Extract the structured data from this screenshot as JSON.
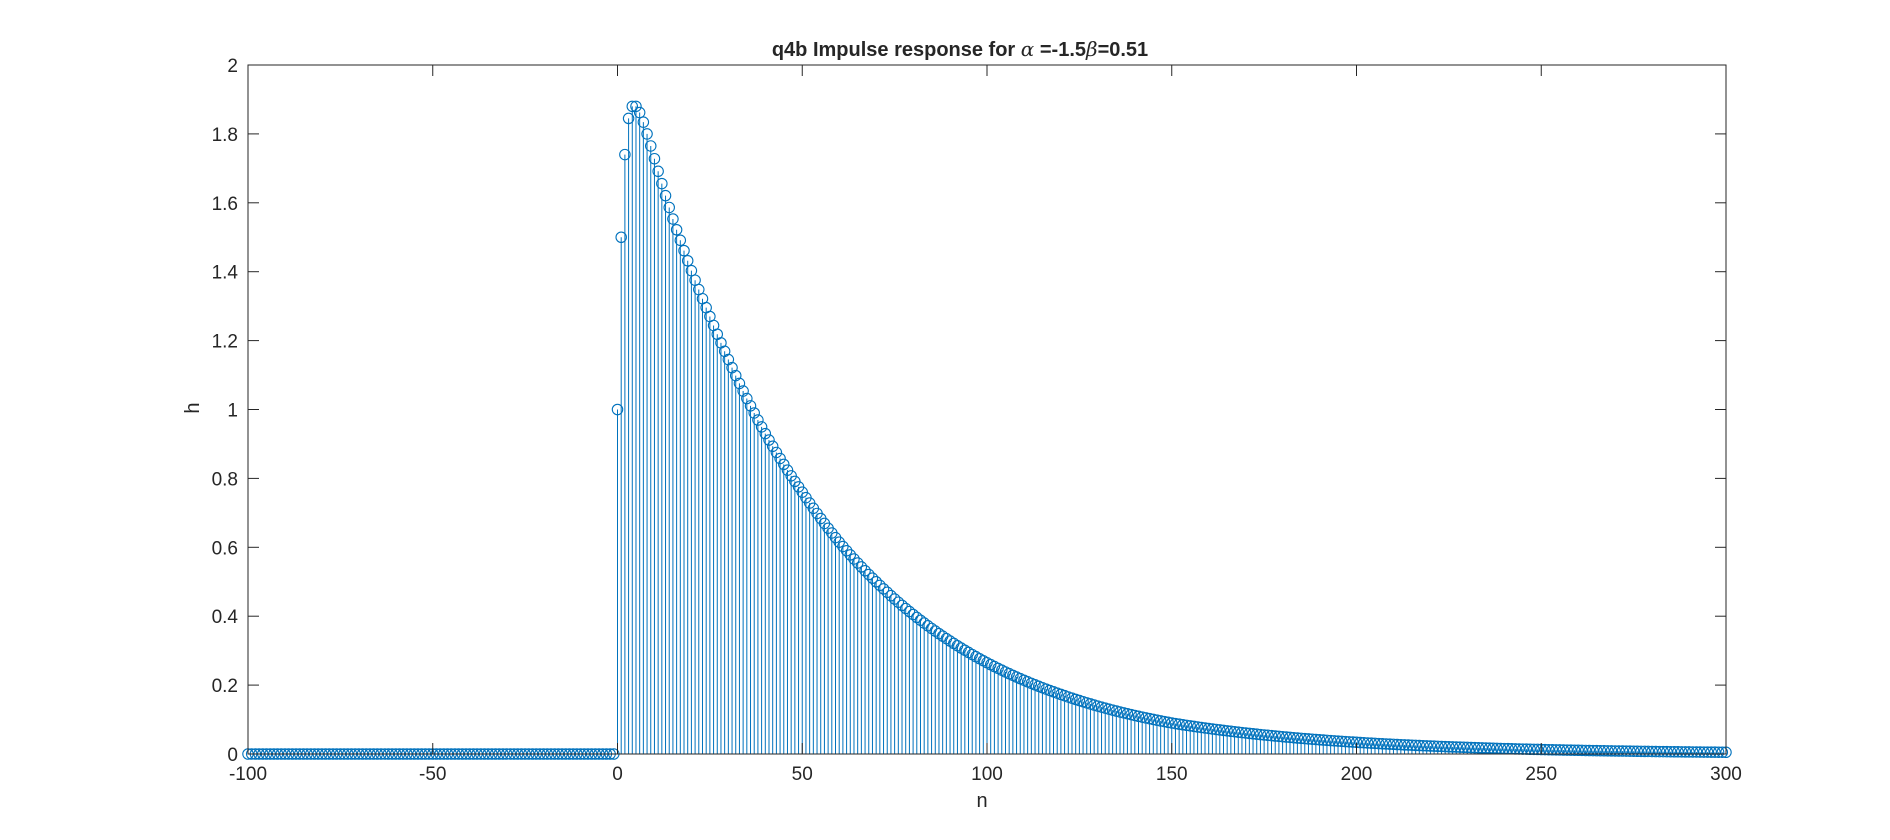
{
  "chart_data": {
    "type": "stem",
    "title": {
      "prefix": "q4b Impulse response for ",
      "alpha_symbol": "α",
      "middle": " =-1.5",
      "beta_symbol": "β",
      "suffix": "=0.51"
    },
    "xlabel": "n",
    "ylabel": "h",
    "xlim": [
      -100,
      300
    ],
    "ylim": [
      0,
      2
    ],
    "xticks": [
      -100,
      -50,
      0,
      50,
      100,
      150,
      200,
      250,
      300
    ],
    "xtick_labels": [
      "-100",
      "-50",
      "0",
      "50",
      "100",
      "150",
      "200",
      "250",
      "300"
    ],
    "yticks": [
      0,
      0.2,
      0.4,
      0.6,
      0.8,
      1,
      1.2,
      1.4,
      1.6,
      1.8,
      2
    ],
    "ytick_labels": [
      "0",
      "0.2",
      "0.4",
      "0.6",
      "0.8",
      "1",
      "1.2",
      "1.4",
      "1.6",
      "1.8",
      "2"
    ],
    "grid": false,
    "color": "#0072BD",
    "series": [
      {
        "n_start": -100,
        "n_end": 300,
        "description_points": {
          "n": [
            0,
            1,
            2,
            3,
            4,
            5,
            6,
            7,
            8,
            9,
            10,
            15,
            20,
            25,
            30,
            40,
            50,
            60,
            70,
            80,
            90,
            100,
            120,
            150,
            200,
            250,
            300
          ],
          "h": [
            1.0,
            1.5,
            1.74,
            1.845,
            1.88,
            1.88,
            1.862,
            1.834,
            1.8,
            1.765,
            1.728,
            1.553,
            1.403,
            1.27,
            1.145,
            0.93,
            0.76,
            0.615,
            0.5,
            0.405,
            0.328,
            0.265,
            0.173,
            0.09,
            0.034,
            0.013,
            0.005
          ]
        },
        "zero_before": 0
      }
    ]
  }
}
